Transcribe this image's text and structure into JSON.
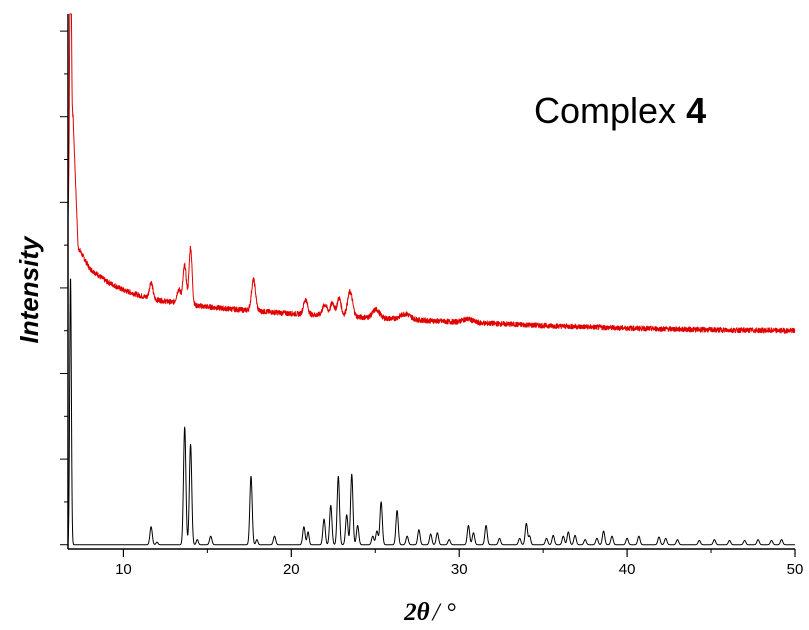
{
  "chart_data": {
    "type": "line",
    "title": "",
    "xlabel_symbol": "2θ",
    "xlabel_unit": "/ °",
    "ylabel": "Intensity",
    "xlim": [
      6.7,
      50
    ],
    "ylim": [
      -0.1,
      12.4
    ],
    "x_ticks": [
      10,
      20,
      30,
      40,
      50
    ],
    "y_ticks_labeled": false,
    "grid": false,
    "legend": "none",
    "annotation": {
      "text": "Complex ",
      "bold_text": "4"
    },
    "colors": {
      "experimental": "#e00000",
      "simulated": "#000000"
    },
    "series": [
      {
        "role": "experimental",
        "color": "#e00000",
        "baseline": [
          [
            6.7,
            7.6
          ],
          [
            7.0,
            10.0
          ],
          [
            7.3,
            6.95
          ],
          [
            8.0,
            6.45
          ],
          [
            9.0,
            6.15
          ],
          [
            10.0,
            5.95
          ],
          [
            11.0,
            5.82
          ],
          [
            12.0,
            5.72
          ],
          [
            14.0,
            5.6
          ],
          [
            16.0,
            5.52
          ],
          [
            20.0,
            5.4
          ],
          [
            25.0,
            5.3
          ],
          [
            30.0,
            5.2
          ],
          [
            35.0,
            5.12
          ],
          [
            40.0,
            5.06
          ],
          [
            45.0,
            5.02
          ],
          [
            50.0,
            5.0
          ]
        ],
        "peaks": [
          [
            6.85,
            6.0,
            0.05
          ],
          [
            11.65,
            0.38,
            0.1
          ],
          [
            13.3,
            0.32,
            0.12
          ],
          [
            13.65,
            0.9,
            0.1
          ],
          [
            14.0,
            1.35,
            0.09
          ],
          [
            17.75,
            0.72,
            0.12
          ],
          [
            20.85,
            0.35,
            0.12
          ],
          [
            22.0,
            0.25,
            0.14
          ],
          [
            22.45,
            0.3,
            0.12
          ],
          [
            22.85,
            0.42,
            0.12
          ],
          [
            23.5,
            0.58,
            0.15
          ],
          [
            25.05,
            0.2,
            0.2
          ],
          [
            26.8,
            0.13,
            0.3
          ],
          [
            30.5,
            0.08,
            0.3
          ]
        ],
        "noise": 0.06
      },
      {
        "role": "simulated",
        "color": "#000000",
        "baseline": [
          [
            6.7,
            0.0
          ],
          [
            50.0,
            0.0
          ]
        ],
        "peaks": [
          [
            6.85,
            6.25,
            0.05
          ],
          [
            11.65,
            0.42,
            0.07
          ],
          [
            12.0,
            0.06,
            0.06
          ],
          [
            13.65,
            2.75,
            0.07
          ],
          [
            14.0,
            2.35,
            0.07
          ],
          [
            14.4,
            0.12,
            0.06
          ],
          [
            15.2,
            0.2,
            0.07
          ],
          [
            17.6,
            1.6,
            0.07
          ],
          [
            17.95,
            0.12,
            0.06
          ],
          [
            19.0,
            0.2,
            0.07
          ],
          [
            20.75,
            0.42,
            0.07
          ],
          [
            21.0,
            0.3,
            0.06
          ],
          [
            21.95,
            0.6,
            0.07
          ],
          [
            22.35,
            0.92,
            0.07
          ],
          [
            22.8,
            1.6,
            0.07
          ],
          [
            23.3,
            0.7,
            0.07
          ],
          [
            23.6,
            1.65,
            0.07
          ],
          [
            23.95,
            0.45,
            0.07
          ],
          [
            24.85,
            0.2,
            0.07
          ],
          [
            25.1,
            0.32,
            0.07
          ],
          [
            25.35,
            1.0,
            0.07
          ],
          [
            26.3,
            0.8,
            0.07
          ],
          [
            26.9,
            0.2,
            0.07
          ],
          [
            27.6,
            0.35,
            0.07
          ],
          [
            28.3,
            0.25,
            0.07
          ],
          [
            28.7,
            0.28,
            0.07
          ],
          [
            29.4,
            0.12,
            0.07
          ],
          [
            30.55,
            0.45,
            0.07
          ],
          [
            30.85,
            0.28,
            0.07
          ],
          [
            31.6,
            0.45,
            0.07
          ],
          [
            32.4,
            0.15,
            0.07
          ],
          [
            33.6,
            0.15,
            0.07
          ],
          [
            34.0,
            0.5,
            0.07
          ],
          [
            34.2,
            0.2,
            0.06
          ],
          [
            35.2,
            0.15,
            0.07
          ],
          [
            35.6,
            0.22,
            0.07
          ],
          [
            36.2,
            0.2,
            0.07
          ],
          [
            36.5,
            0.3,
            0.07
          ],
          [
            36.9,
            0.22,
            0.07
          ],
          [
            37.5,
            0.12,
            0.07
          ],
          [
            38.2,
            0.15,
            0.07
          ],
          [
            38.6,
            0.32,
            0.07
          ],
          [
            39.1,
            0.2,
            0.07
          ],
          [
            40.0,
            0.15,
            0.07
          ],
          [
            40.7,
            0.2,
            0.07
          ],
          [
            41.9,
            0.18,
            0.07
          ],
          [
            42.3,
            0.15,
            0.07
          ],
          [
            43.0,
            0.12,
            0.07
          ],
          [
            44.3,
            0.1,
            0.07
          ],
          [
            45.2,
            0.12,
            0.07
          ],
          [
            46.1,
            0.1,
            0.07
          ],
          [
            47.0,
            0.1,
            0.07
          ],
          [
            47.8,
            0.12,
            0.07
          ],
          [
            48.6,
            0.1,
            0.07
          ],
          [
            49.2,
            0.12,
            0.07
          ]
        ],
        "noise": 0.0
      }
    ]
  }
}
